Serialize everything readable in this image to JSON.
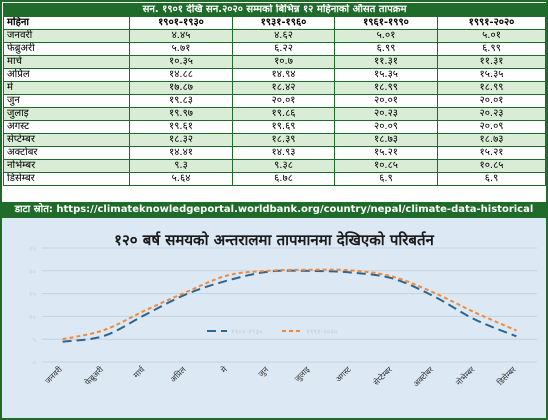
{
  "table": {
    "title": "सन. १९०१ देखि सन.२०२० सम्मको बिभिन्न १२ महिनाको औसत तापक्रम",
    "headers": [
      "महिना",
      "१९०१-१९३०",
      "१९३१-१९६०",
      "१९६१-१९९०",
      "१९९१-२०२०"
    ],
    "rows": [
      [
        "जनवरी",
        "४.४५",
        "४.६२",
        "५.०१",
        "५.०१"
      ],
      [
        "फेब्रुअरी",
        "५.७१",
        "६.२२",
        "६.९९",
        "६.९९"
      ],
      [
        "मार्च",
        "१०.३५",
        "१०.७",
        "११.३१",
        "११.३१"
      ],
      [
        "अप्रिल",
        "१४.८८",
        "१४.९४",
        "१५.३५",
        "१५.३५"
      ],
      [
        "मे",
        "१७.८७",
        "१८.४२",
        "१८.९९",
        "१८.९९"
      ],
      [
        "जुन",
        "१९.८३",
        "२०.०१",
        "२०.०१",
        "२०.०१"
      ],
      [
        "जुलाइ",
        "१९.९७",
        "१९.८६",
        "२०.२३",
        "२०.२३"
      ],
      [
        "अगस्ट",
        "१९.६१",
        "१९.६९",
        "२०.०९",
        "२०.०९"
      ],
      [
        "सेप्टेम्बर",
        "१८.३२",
        "१८.३९",
        "१८.७३",
        "१८.७३"
      ],
      [
        "अक्टोबर",
        "१४.४१",
        "१४.९३",
        "१५.२१",
        "१५.२१"
      ],
      [
        "नोभेम्बर",
        "९.३",
        "९.३८",
        "१०.८५",
        "१०.८५"
      ],
      [
        "डिसेम्बर",
        "५.६४",
        "६.७८",
        "६.९",
        "६.९"
      ]
    ]
  },
  "source": {
    "label": "डाटा स्रोत:",
    "url": "https://climateknowledgeportal.worldbank.org/country/nepal/climate-data-historical"
  },
  "colors": {
    "table_border": "#1f6b2a",
    "table_header_bg": "#1f6b2a",
    "row_alt_bg": "#d9ecd6",
    "chart_bg": "#dce9f5",
    "series_1901": "#2e6591",
    "series_1991": "#f08a3a"
  },
  "chart_data": {
    "type": "line",
    "title": "१२० बर्ष समयको अन्तरालमा तापमानमा देखिएको परिबर्तन",
    "categories": [
      "जनवरी",
      "फेब्रुअरी",
      "मार्च",
      "अप्रिल",
      "मे",
      "जुन",
      "जुलाइ",
      "अगस्ट",
      "सेप्टेम्बर",
      "अक्टोबर",
      "नोभेम्बर",
      "डिसेम्बर"
    ],
    "yticks": [
      "०",
      "५",
      "१०",
      "१५",
      "२०",
      "२५"
    ],
    "ylim": [
      0,
      25
    ],
    "grid": true,
    "legend_position": "center",
    "series": [
      {
        "name": "१९०१-१९३०",
        "style": "long-dash",
        "values": [
          4.45,
          5.71,
          10.35,
          14.88,
          17.87,
          19.83,
          19.97,
          19.61,
          18.32,
          14.41,
          9.3,
          5.64
        ]
      },
      {
        "name": "१९९१-२०२०",
        "style": "short-dash",
        "values": [
          5.01,
          6.99,
          11.31,
          15.35,
          18.99,
          20.01,
          20.23,
          20.09,
          18.73,
          15.21,
          10.85,
          6.9
        ]
      }
    ]
  }
}
